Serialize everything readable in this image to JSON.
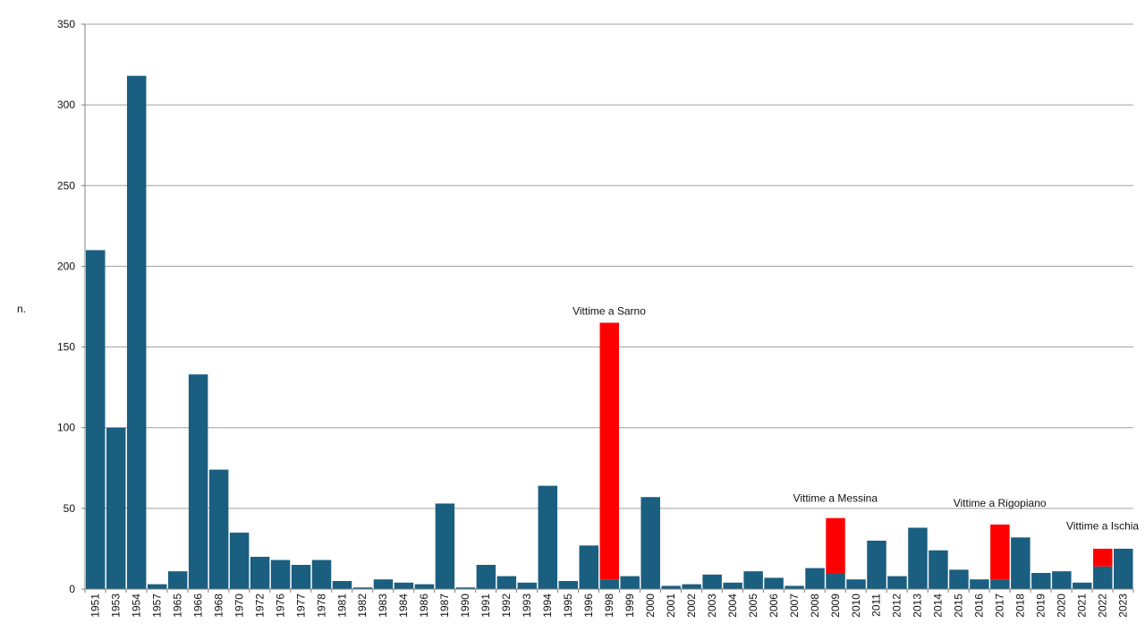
{
  "chart_data": {
    "type": "bar",
    "title": "",
    "xlabel": "",
    "ylabel": "n.",
    "ylim": [
      0,
      350
    ],
    "yticks": [
      0,
      50,
      100,
      150,
      200,
      250,
      300,
      350
    ],
    "grid": true,
    "categories": [
      "1951",
      "1953",
      "1954",
      "1957",
      "1965",
      "1966",
      "1968",
      "1970",
      "1972",
      "1976",
      "1977",
      "1978",
      "1981",
      "1982",
      "1983",
      "1984",
      "1986",
      "1987",
      "1990",
      "1991",
      "1992",
      "1993",
      "1994",
      "1995",
      "1996",
      "1998",
      "1999",
      "2000",
      "2001",
      "2002",
      "2003",
      "2004",
      "2005",
      "2006",
      "2007",
      "2008",
      "2009",
      "2010",
      "2011",
      "2012",
      "2013",
      "2014",
      "2015",
      "2016",
      "2017",
      "2018",
      "2019",
      "2020",
      "2021",
      "2022",
      "2023"
    ],
    "series": [
      {
        "values": [
          210,
          100,
          318,
          3,
          11,
          133,
          74,
          35,
          20,
          18,
          15,
          18,
          5,
          1,
          6,
          4,
          3,
          53,
          1,
          15,
          8,
          4,
          64,
          5,
          27,
          6,
          8,
          57,
          2,
          3,
          9,
          4,
          11,
          7,
          2,
          13,
          10,
          6,
          30,
          8,
          38,
          24,
          12,
          6,
          6,
          32,
          10,
          11,
          4,
          14,
          25
        ],
        "color": "#1a5e80"
      },
      {
        "values": [
          0,
          0,
          0,
          0,
          0,
          0,
          0,
          0,
          0,
          0,
          0,
          0,
          0,
          0,
          0,
          0,
          0,
          0,
          0,
          0,
          0,
          0,
          0,
          0,
          0,
          159,
          0,
          0,
          0,
          0,
          0,
          0,
          0,
          0,
          0,
          0,
          34,
          0,
          0,
          0,
          0,
          0,
          0,
          0,
          34,
          0,
          0,
          0,
          0,
          11,
          0
        ],
        "color": "#ff0000"
      }
    ],
    "annotations": [
      {
        "text": "Vittime a Sarno",
        "category": "1998",
        "y": 170
      },
      {
        "text": "Vittime a Messina",
        "category": "2009",
        "y": 54
      },
      {
        "text": "Vittime a Rigopiano",
        "category": "2017",
        "y": 51
      },
      {
        "text": "Vittime a Ischia",
        "category": "2022",
        "y": 37
      }
    ],
    "colors": {
      "grid": "#a0a0a0",
      "axis": "#808080"
    }
  }
}
